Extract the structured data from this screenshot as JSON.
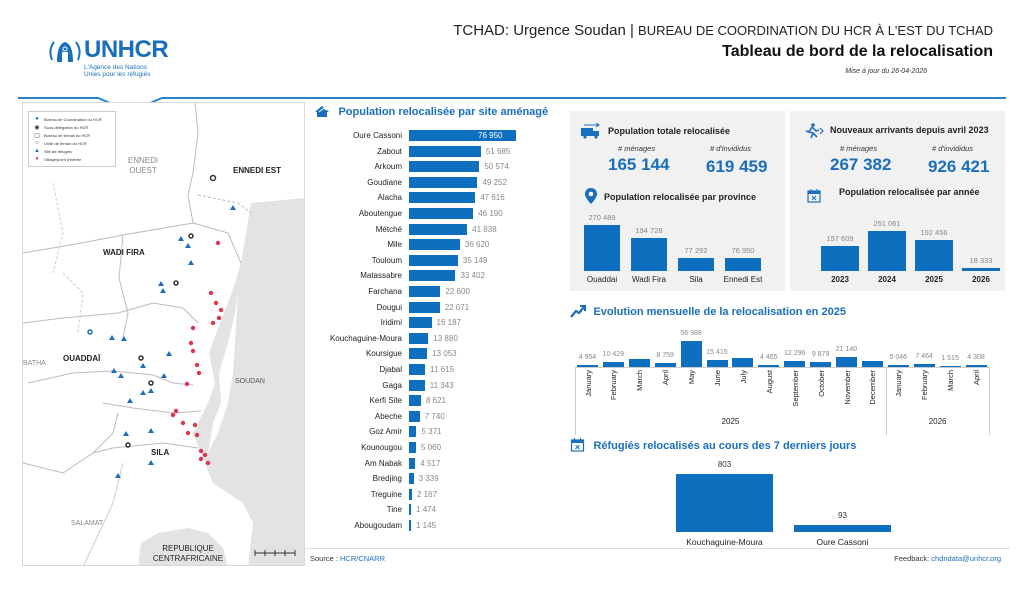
{
  "header": {
    "logo_text": "UNHCR",
    "logo_sub1": "L'Agence des Nations",
    "logo_sub2": "Unies pour les réfugiés",
    "title_part1": "TCHAD: Urgence Soudan | ",
    "title_part2": "BUREAU DE COORDINATION DU HCR À L'EST DU TCHAD",
    "subtitle": "Tableau de bord de la relocalisation",
    "updated": "Mise à jour du 26-04-2026"
  },
  "colors": {
    "accent": "#1a6fbd",
    "bar": "#0e6fbe",
    "panel": "#f1f1f1",
    "marker_red": "#e0344f"
  },
  "map": {
    "legend": [
      {
        "icon": "office-circle-blue",
        "label": "Bureau de Coordination du HCR"
      },
      {
        "icon": "office-circle-dark",
        "label": "Sous-délégation du HCR"
      },
      {
        "icon": "office-square",
        "label": "Bureau de terrain du HCR"
      },
      {
        "icon": "office-small",
        "label": "Unité de terrain du HCR"
      },
      {
        "icon": "camp-tent",
        "label": "Site de réfugiés"
      },
      {
        "icon": "red-pin",
        "label": "Village/point d'entrée"
      }
    ],
    "regions": [
      "ENNEDI OUEST",
      "ENNEDI EST",
      "WADI FIRA",
      "OUADDAÏ",
      "SILA",
      "BATHA",
      "SOUDAN",
      "SALAMAT",
      "REPUBLIQUE CENTRAFRICAINE"
    ]
  },
  "site_chart": {
    "title": "Population relocalisée par site aménagé",
    "icon": "house-icon",
    "type": "bar",
    "categories": [
      "Oure Cassoni",
      "Zabout",
      "Arkoum",
      "Goudiane",
      "Alacha",
      "Aboutengue",
      "Métché",
      "Mile",
      "Touloum",
      "Matassabre",
      "Farchana",
      "Dougui",
      "Iridimi",
      "Kouchaguine-Moura",
      "Koursigue",
      "Djabal",
      "Gaga",
      "Kerfi Site",
      "Abeche",
      "Goz Amir",
      "Kounougou",
      "Am Nabak",
      "Bredjing",
      "Treguine",
      "Tine",
      "Abougoudam"
    ],
    "values": [
      76950,
      51685,
      50574,
      49252,
      47616,
      46190,
      41838,
      36620,
      35149,
      33402,
      22600,
      22071,
      16187,
      13880,
      13053,
      11615,
      11343,
      8621,
      7740,
      5371,
      5060,
      4517,
      3339,
      2167,
      1474,
      1145
    ],
    "labels": [
      "76 950",
      "51 685",
      "50 574",
      "49 252",
      "47 616",
      "46 190",
      "41 838",
      "36 620",
      "35 149",
      "33 402",
      "22 600",
      "22 071",
      "16 187",
      "13 880",
      "13 053",
      "11 615",
      "11 343",
      "8 621",
      "7 740",
      "5 371",
      "5 060",
      "4 517",
      "3 339",
      "2 167",
      "1 474",
      "1 145"
    ]
  },
  "source": {
    "label": "Source : ",
    "link": "HCR/CNARR"
  },
  "feedback": {
    "label": "Feedback: ",
    "link": "chdndata@unhcr.org"
  },
  "total": {
    "title": "Population totale relocalisée",
    "menages_label": "# ménages",
    "menages": "165 144",
    "individus_label": "# d'invididus",
    "individus": "619 459"
  },
  "arrivals": {
    "title": "Nouveaux arrivants depuis avril 2023",
    "menages_label": "# ménages",
    "menages": "267 382",
    "individus_label": "# d'invididus",
    "individus": "926 421"
  },
  "chart_data": [
    {
      "type": "bar",
      "title": "Population relocalisée par province",
      "categories": [
        "Ouaddai",
        "Wadi Fira",
        "Sila",
        "Ennedi Est"
      ],
      "values": [
        270489,
        194728,
        77292,
        76950
      ],
      "labels": [
        "270 489",
        "194 728",
        "77 292",
        "76 950"
      ]
    },
    {
      "type": "bar",
      "title": "Population relocalisée par année",
      "categories": [
        "2023",
        "2024",
        "2025",
        "2026"
      ],
      "values": [
        157609,
        251061,
        192456,
        18333
      ],
      "labels": [
        "157 609",
        "251 061",
        "192 456",
        "18 333"
      ]
    },
    {
      "type": "bar",
      "title": "Evolution mensuelle de la relocalisation en 2025",
      "categories": [
        "January",
        "February",
        "March",
        "April",
        "May",
        "June",
        "July",
        "August",
        "September",
        "October",
        "November",
        "December",
        "January",
        "February",
        "March",
        "April"
      ],
      "groups": [
        {
          "label": "2025",
          "count": 12
        },
        {
          "label": "2026",
          "count": 4
        }
      ],
      "values": [
        4954,
        10429,
        null,
        8759,
        56988,
        15415,
        null,
        4465,
        12296,
        9879,
        21140,
        null,
        5046,
        7464,
        1515,
        4308
      ],
      "labels": [
        "4 954",
        "10 429",
        "",
        "8 759",
        "56 988",
        "15 415",
        "",
        "4 465",
        "12 296",
        "9 879",
        "21 140",
        "",
        "5 046",
        "7 464",
        "1 515",
        "4 308"
      ]
    },
    {
      "type": "bar",
      "title": "Réfugiés relocalisés au cours des 7 derniers jours",
      "categories": [
        "Kouchaguine-Moura",
        "Oure Cassoni"
      ],
      "values": [
        803,
        93
      ],
      "labels": [
        "803",
        "93"
      ]
    }
  ]
}
